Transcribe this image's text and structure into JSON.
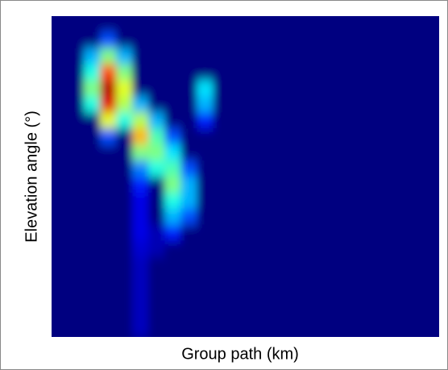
{
  "chart_data": {
    "type": "heatmap",
    "xlabel": "Group path (km)",
    "ylabel": "Elevation angle (°)",
    "colormap": "jet",
    "vlim": [
      0,
      1
    ],
    "values": [
      [
        0,
        0,
        0,
        0,
        0,
        0,
        0,
        0,
        0,
        0,
        0,
        0,
        0,
        0,
        0,
        0,
        0,
        0,
        0,
        0,
        0,
        0,
        0,
        0
      ],
      [
        0,
        0,
        0,
        0.2,
        0,
        0,
        0,
        0,
        0,
        0,
        0,
        0,
        0,
        0,
        0,
        0,
        0,
        0,
        0,
        0,
        0,
        0,
        0,
        0
      ],
      [
        0,
        0,
        0.3,
        0.5,
        0.3,
        0,
        0,
        0,
        0,
        0,
        0,
        0,
        0,
        0,
        0,
        0,
        0,
        0,
        0,
        0,
        0,
        0,
        0,
        0
      ],
      [
        0,
        0,
        0.4,
        0.8,
        0.5,
        0,
        0,
        0,
        0,
        0,
        0,
        0,
        0,
        0,
        0,
        0,
        0,
        0,
        0,
        0,
        0,
        0,
        0,
        0
      ],
      [
        0,
        0,
        0.5,
        0.95,
        0.6,
        0,
        0,
        0,
        0,
        0.35,
        0,
        0,
        0,
        0,
        0,
        0,
        0,
        0,
        0,
        0,
        0,
        0,
        0,
        0
      ],
      [
        0,
        0,
        0.4,
        0.9,
        0.55,
        0.3,
        0,
        0,
        0,
        0.3,
        0,
        0,
        0,
        0,
        0,
        0,
        0,
        0,
        0,
        0,
        0,
        0,
        0,
        0
      ],
      [
        0,
        0,
        0,
        0.6,
        0.4,
        0.55,
        0.3,
        0,
        0,
        0.15,
        0,
        0,
        0,
        0,
        0,
        0,
        0,
        0,
        0,
        0,
        0,
        0,
        0,
        0
      ],
      [
        0,
        0,
        0,
        0.2,
        0,
        0.7,
        0.45,
        0.2,
        0,
        0,
        0,
        0,
        0,
        0,
        0,
        0,
        0,
        0,
        0,
        0,
        0,
        0,
        0,
        0
      ],
      [
        0,
        0,
        0,
        0,
        0,
        0.5,
        0.5,
        0.35,
        0,
        0,
        0,
        0,
        0,
        0,
        0,
        0,
        0,
        0,
        0,
        0,
        0,
        0,
        0,
        0
      ],
      [
        0,
        0,
        0,
        0,
        0,
        0.25,
        0.4,
        0.45,
        0.2,
        0,
        0,
        0,
        0,
        0,
        0,
        0,
        0,
        0,
        0,
        0,
        0,
        0,
        0,
        0
      ],
      [
        0,
        0,
        0,
        0,
        0,
        0.15,
        0,
        0.5,
        0.3,
        0,
        0,
        0,
        0,
        0,
        0,
        0,
        0,
        0,
        0,
        0,
        0,
        0,
        0,
        0
      ],
      [
        0,
        0,
        0,
        0,
        0,
        0.1,
        0,
        0.4,
        0.3,
        0,
        0,
        0,
        0,
        0,
        0,
        0,
        0,
        0,
        0,
        0,
        0,
        0,
        0,
        0
      ],
      [
        0,
        0,
        0,
        0,
        0,
        0.1,
        0,
        0.3,
        0.2,
        0,
        0,
        0,
        0,
        0,
        0,
        0,
        0,
        0,
        0,
        0,
        0,
        0,
        0,
        0
      ],
      [
        0,
        0,
        0,
        0,
        0,
        0.1,
        0.05,
        0.15,
        0,
        0,
        0,
        0,
        0,
        0,
        0,
        0,
        0,
        0,
        0,
        0,
        0,
        0,
        0,
        0
      ],
      [
        0,
        0,
        0,
        0,
        0,
        0.08,
        0.05,
        0,
        0,
        0,
        0,
        0,
        0,
        0,
        0,
        0,
        0,
        0,
        0,
        0,
        0,
        0,
        0,
        0
      ],
      [
        0,
        0,
        0,
        0,
        0,
        0.06,
        0,
        0,
        0,
        0,
        0,
        0,
        0,
        0,
        0,
        0,
        0,
        0,
        0,
        0,
        0,
        0,
        0,
        0
      ],
      [
        0,
        0,
        0,
        0,
        0,
        0.06,
        0,
        0,
        0,
        0,
        0,
        0,
        0,
        0,
        0,
        0,
        0,
        0,
        0,
        0,
        0,
        0,
        0,
        0
      ],
      [
        0,
        0,
        0,
        0,
        0,
        0.06,
        0,
        0,
        0,
        0,
        0,
        0,
        0,
        0,
        0,
        0,
        0,
        0,
        0,
        0,
        0,
        0,
        0,
        0
      ],
      [
        0,
        0,
        0,
        0,
        0,
        0.06,
        0,
        0,
        0,
        0,
        0,
        0,
        0,
        0,
        0,
        0,
        0,
        0,
        0,
        0,
        0,
        0,
        0,
        0
      ],
      [
        0,
        0,
        0,
        0,
        0,
        0.06,
        0,
        0,
        0,
        0,
        0,
        0,
        0,
        0,
        0,
        0,
        0,
        0,
        0,
        0,
        0,
        0,
        0,
        0
      ]
    ]
  }
}
